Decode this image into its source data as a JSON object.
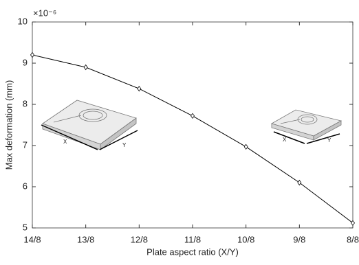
{
  "chart_data": {
    "type": "line",
    "x_label": "Plate aspect ratio (X/Y)",
    "y_label": "Max deformation (mm)",
    "y_exponent": "×10⁻⁶",
    "categories": [
      "14/8",
      "13/8",
      "12/8",
      "11/8",
      "10/8",
      "9/8",
      "8/8"
    ],
    "values": [
      9.2,
      8.9,
      8.38,
      7.72,
      6.97,
      6.1,
      5.12
    ],
    "color": "#000000",
    "ylim": [
      5,
      10
    ],
    "yticks": [
      5,
      6,
      7,
      8,
      9,
      10
    ],
    "grid": false,
    "annotations": [
      "X",
      "Y",
      "X",
      "Y"
    ]
  }
}
